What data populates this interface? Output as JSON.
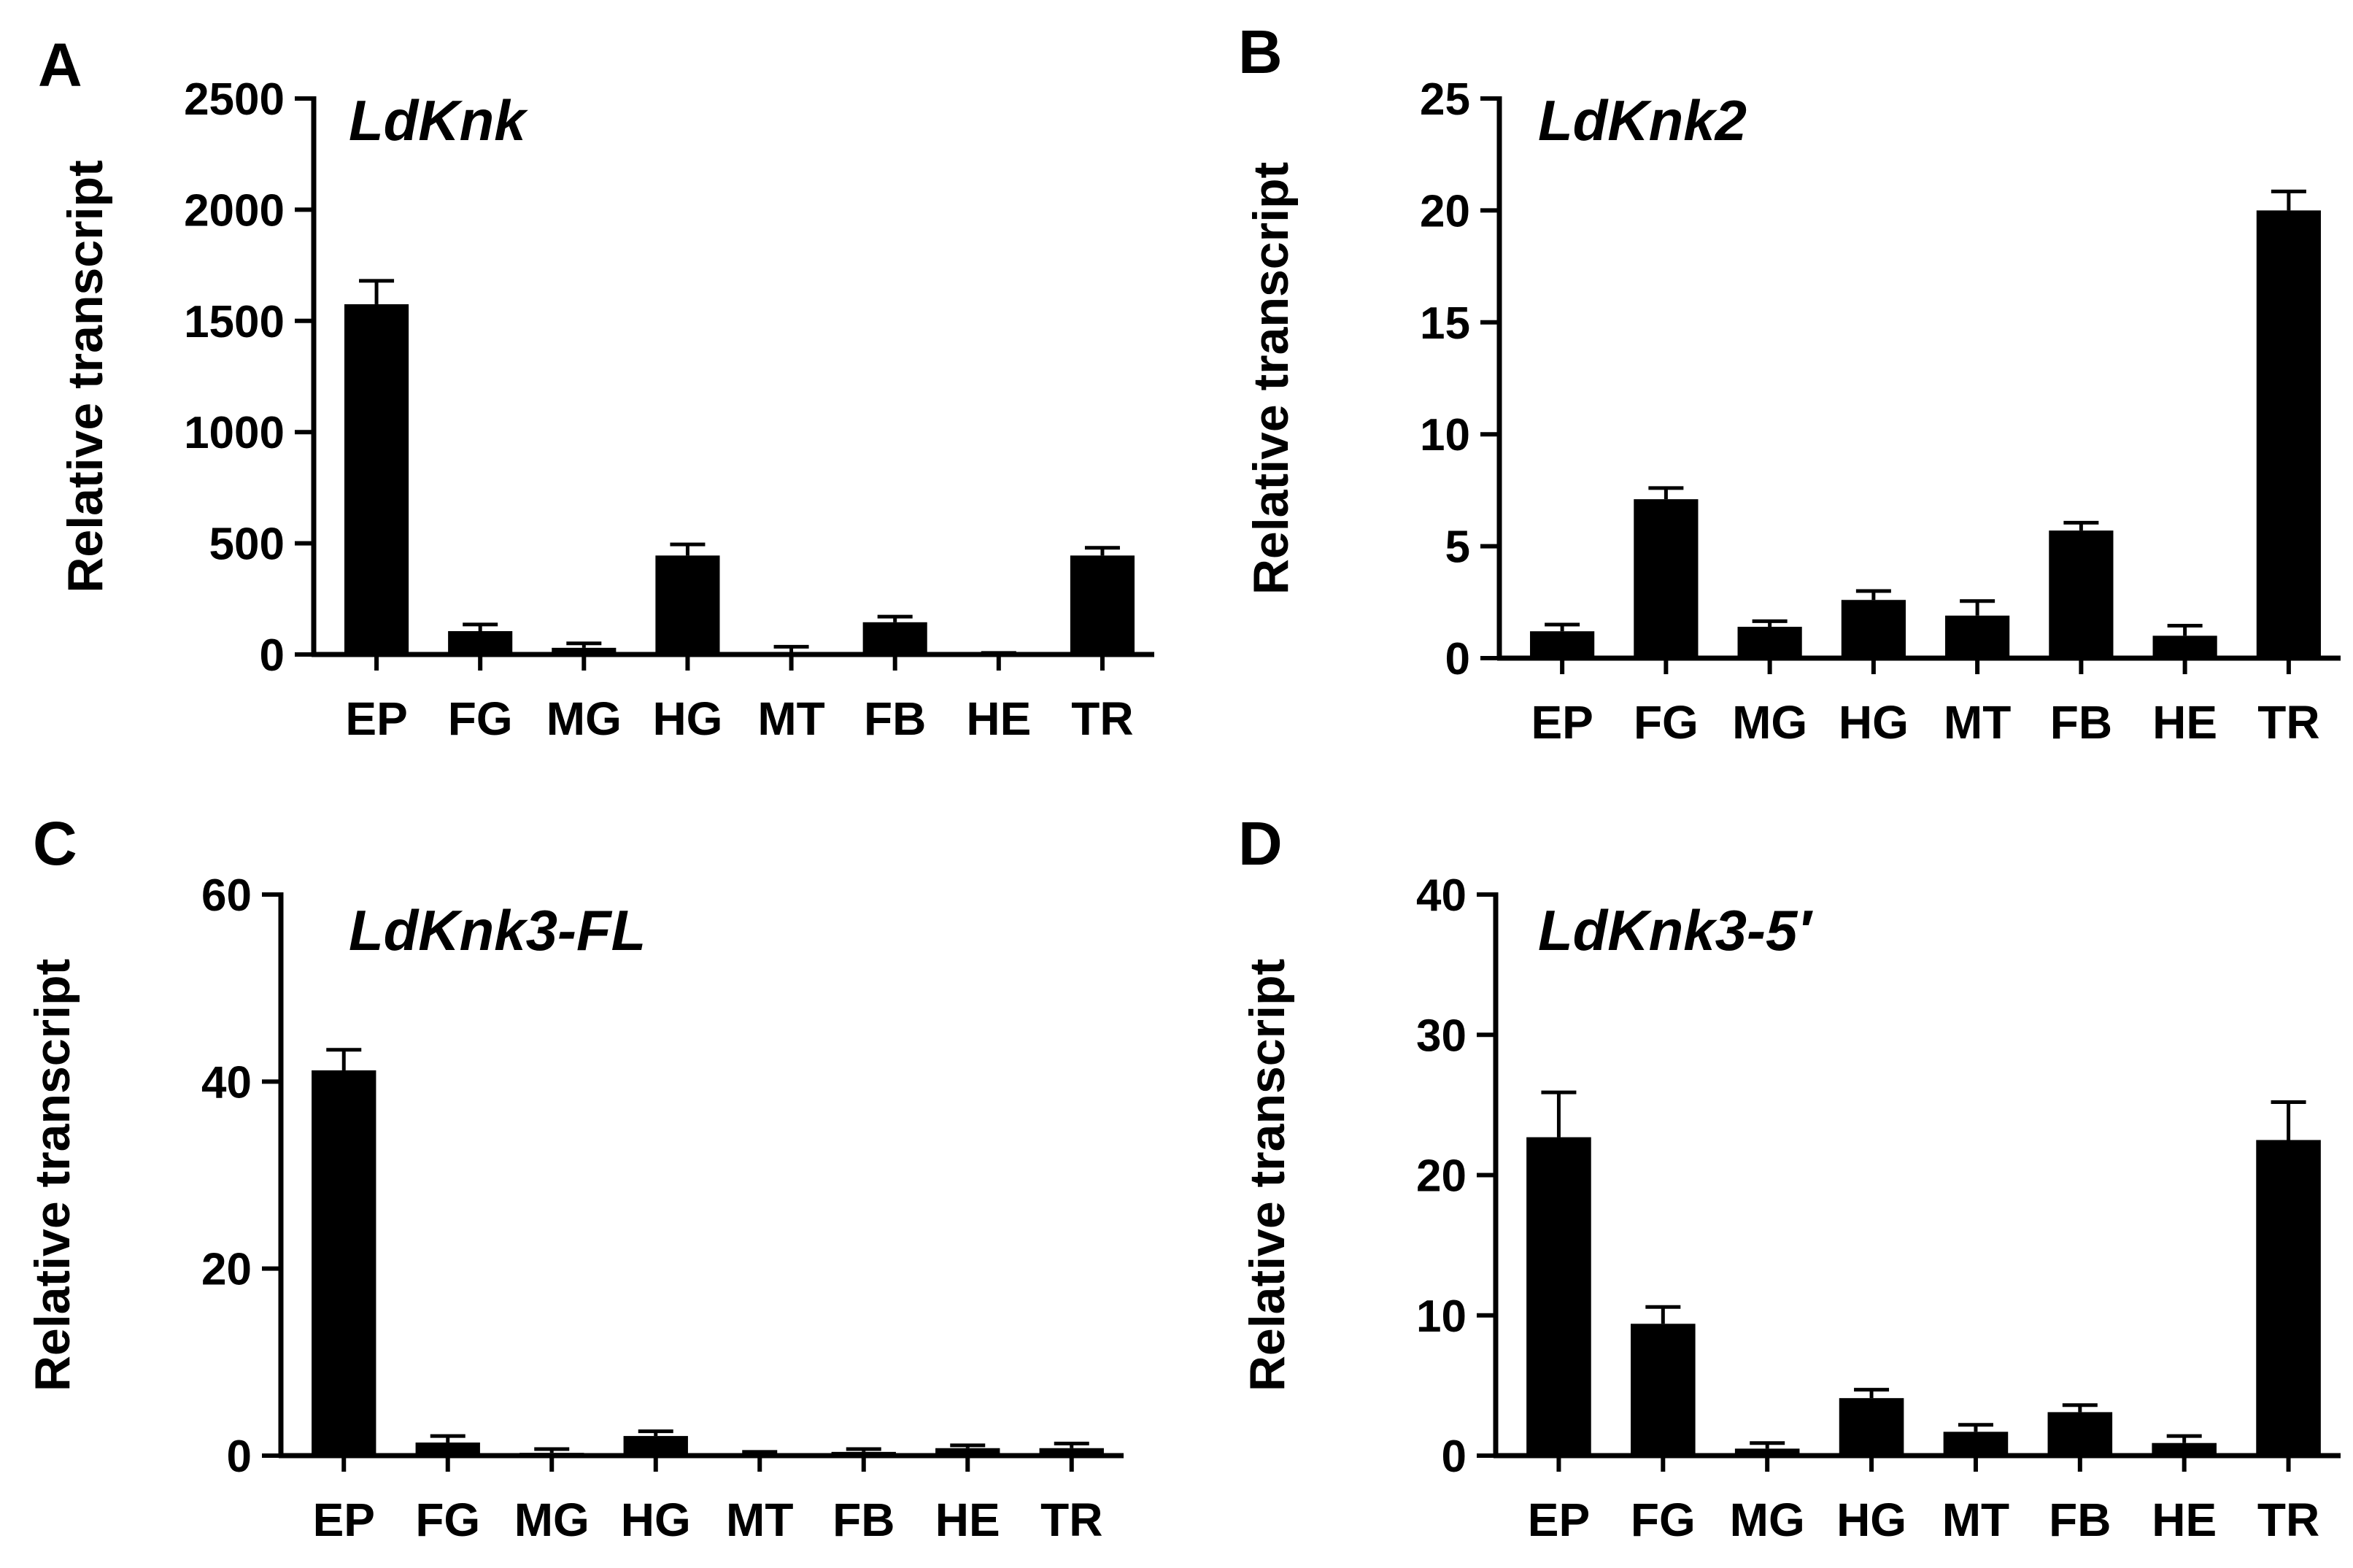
{
  "chart_data": [
    {
      "panel_label": "A",
      "type": "bar",
      "title": "LdKnk",
      "ylabel": "Relative transcript",
      "xlabel": "",
      "categories": [
        "EP",
        "FG",
        "MG",
        "HG",
        "MT",
        "FB",
        "HE",
        "TR"
      ],
      "values": [
        1575,
        105,
        30,
        445,
        10,
        145,
        2,
        445
      ],
      "errors": [
        105,
        30,
        20,
        50,
        25,
        25,
        5,
        35
      ],
      "ylim": [
        0,
        2500
      ],
      "yticks": [
        "0",
        "500",
        "1000",
        "1500",
        "2000",
        "2500"
      ]
    },
    {
      "panel_label": "B",
      "type": "bar",
      "title": "LdKnk2",
      "ylabel": "Relative transcript",
      "xlabel": "",
      "categories": [
        "EP",
        "FG",
        "MG",
        "HG",
        "MT",
        "FB",
        "HE",
        "TR"
      ],
      "values": [
        1.2,
        7.1,
        1.4,
        2.6,
        1.9,
        5.7,
        1.0,
        20.0
      ],
      "errors": [
        0.3,
        0.5,
        0.25,
        0.4,
        0.65,
        0.35,
        0.45,
        0.85
      ],
      "ylim": [
        0,
        25
      ],
      "yticks": [
        "0",
        "5",
        "10",
        "15",
        "20",
        "25"
      ]
    },
    {
      "panel_label": "C",
      "type": "bar",
      "title": "LdKnk3-FL",
      "ylabel": "Relative transcript",
      "xlabel": "",
      "categories": [
        "EP",
        "FG",
        "MG",
        "HG",
        "MT",
        "FB",
        "HE",
        "TR"
      ],
      "values": [
        41.2,
        1.4,
        0.3,
        2.1,
        0.2,
        0.4,
        0.8,
        0.8
      ],
      "errors": [
        2.2,
        0.7,
        0.4,
        0.5,
        0.2,
        0.3,
        0.3,
        0.5
      ],
      "ylim": [
        0,
        60
      ],
      "yticks": [
        "0",
        "20",
        "40",
        "60"
      ]
    },
    {
      "panel_label": "D",
      "type": "bar",
      "title": "LdKnk3-5′",
      "ylabel": "Relative transcript",
      "xlabel": "",
      "categories": [
        "EP",
        "FG",
        "MG",
        "HG",
        "MT",
        "FB",
        "HE",
        "TR"
      ],
      "values": [
        22.7,
        9.4,
        0.5,
        4.1,
        1.7,
        3.1,
        0.9,
        22.5
      ],
      "errors": [
        3.2,
        1.2,
        0.4,
        0.6,
        0.5,
        0.5,
        0.5,
        2.7
      ],
      "ylim": [
        0,
        40
      ],
      "yticks": [
        "0",
        "10",
        "20",
        "30",
        "40"
      ]
    }
  ]
}
